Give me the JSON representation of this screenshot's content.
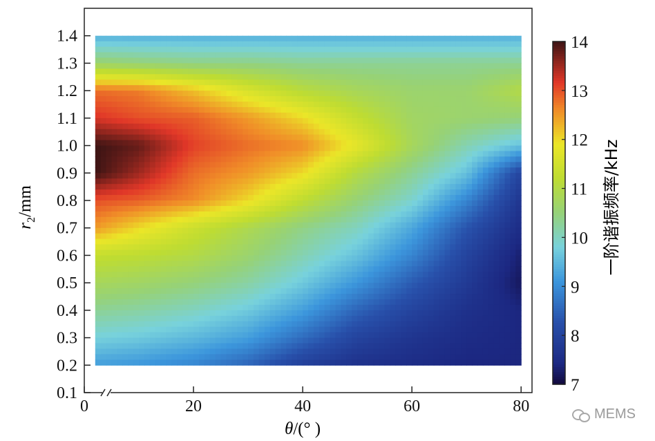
{
  "chart_data": {
    "type": "heatmap",
    "title": "",
    "xlabel_italic": "θ",
    "xlabel_rest": "/(° )",
    "ylabel_italic": "r",
    "ylabel_sub": "2",
    "ylabel_rest": "/mm",
    "colorbar_label": "一阶谐振频率/kHz",
    "x_axis": {
      "min": 0,
      "max": 82,
      "ticks": [
        0,
        20,
        40,
        60,
        80
      ],
      "break": true
    },
    "y_axis": {
      "min": 0.1,
      "max": 1.5,
      "ticks": [
        0.1,
        0.2,
        0.3,
        0.4,
        0.5,
        0.6,
        0.7,
        0.8,
        0.9,
        1.0,
        1.1,
        1.2,
        1.3,
        1.4
      ]
    },
    "colorbar": {
      "min": 7,
      "max": 14,
      "ticks": [
        7,
        8,
        9,
        10,
        11,
        12,
        13,
        14
      ]
    },
    "data_extent": {
      "x": [
        2,
        80
      ],
      "y": [
        0.2,
        1.4
      ]
    },
    "x": [
      2,
      10,
      20,
      30,
      40,
      50,
      60,
      70,
      80
    ],
    "y": [
      0.2,
      0.3,
      0.4,
      0.5,
      0.6,
      0.7,
      0.8,
      0.9,
      1.0,
      1.1,
      1.2,
      1.3,
      1.4
    ],
    "z": [
      [
        9.2,
        9.1,
        8.9,
        8.5,
        7.9,
        7.6,
        7.5,
        7.4,
        7.4
      ],
      [
        9.8,
        9.7,
        9.5,
        9.2,
        8.6,
        8.0,
        7.7,
        7.5,
        7.4
      ],
      [
        10.3,
        10.2,
        10.0,
        9.7,
        9.2,
        8.5,
        8.0,
        7.6,
        7.4
      ],
      [
        10.8,
        10.7,
        10.5,
        10.2,
        9.7,
        9.1,
        8.4,
        7.8,
        7.2
      ],
      [
        11.3,
        11.2,
        11.0,
        10.6,
        10.1,
        9.6,
        8.9,
        8.0,
        7.3
      ],
      [
        12.5,
        12.0,
        11.4,
        10.9,
        10.4,
        10.0,
        9.3,
        8.3,
        7.5
      ],
      [
        13.0,
        12.9,
        12.6,
        12.0,
        11.2,
        10.5,
        9.9,
        8.9,
        7.7
      ],
      [
        14.0,
        13.5,
        12.8,
        12.5,
        12.0,
        11.0,
        10.3,
        9.6,
        8.0
      ],
      [
        14.0,
        13.8,
        13.1,
        12.8,
        12.6,
        11.8,
        10.8,
        10.1,
        9.6
      ],
      [
        13.2,
        13.0,
        12.9,
        12.5,
        12.0,
        11.3,
        10.7,
        10.6,
        10.5
      ],
      [
        12.8,
        12.7,
        12.2,
        11.6,
        11.1,
        10.8,
        10.6,
        10.6,
        11.0
      ],
      [
        10.6,
        10.5,
        10.4,
        10.4,
        10.3,
        10.3,
        10.3,
        10.3,
        10.3
      ],
      [
        9.4,
        9.4,
        9.4,
        9.4,
        9.4,
        9.4,
        9.4,
        9.4,
        9.4
      ]
    ]
  },
  "watermark": {
    "text": "MEMS",
    "icon": "wechat-icon"
  }
}
